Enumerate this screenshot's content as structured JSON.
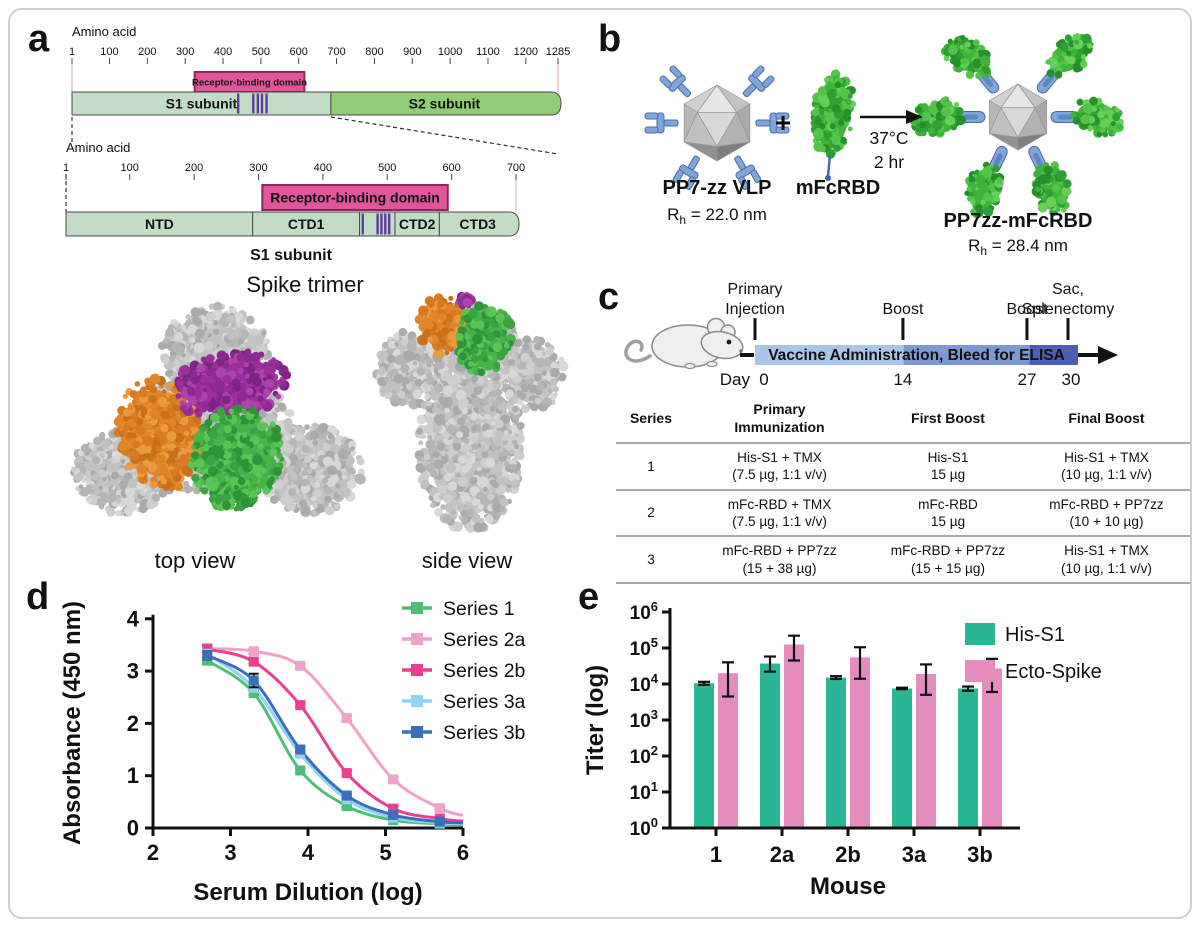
{
  "figure": {
    "panel_labels": {
      "a": "a",
      "b": "b",
      "c": "c",
      "d": "d",
      "e": "e"
    }
  },
  "panel_a": {
    "full_map": {
      "ruler_title": "Amino acid",
      "ticks": [
        1,
        100,
        200,
        300,
        400,
        500,
        600,
        700,
        800,
        900,
        1000,
        1100,
        1200,
        1285
      ],
      "domain_max": 1285,
      "rbd": {
        "label": "Receptor-binding domain",
        "start": 325,
        "end": 615
      },
      "segments": [
        {
          "label": "S1 subunit",
          "start": 1,
          "end": 685,
          "color": "#c3dcc6"
        },
        {
          "label": "S2 subunit",
          "start": 685,
          "end": 1285,
          "color": "#92cc77"
        }
      ],
      "marks": [
        440,
        480,
        492,
        503,
        515
      ]
    },
    "s1_map": {
      "ruler_title": "Amino acid",
      "ticks": [
        1,
        100,
        200,
        300,
        400,
        500,
        600,
        700
      ],
      "domain_max": 700,
      "rbd": {
        "label": "Receptor-binding domain",
        "start": 306,
        "end": 594
      },
      "segments": [
        {
          "label": "NTD",
          "start": 1,
          "end": 291,
          "color": "#c3dcc6"
        },
        {
          "label": "CTD1",
          "start": 291,
          "end": 457,
          "color": "#c3dcc6"
        },
        {
          "label": "",
          "start": 457,
          "end": 512,
          "color": "#c3dcc6"
        },
        {
          "label": "CTD2",
          "start": 512,
          "end": 581,
          "color": "#c3dcc6"
        },
        {
          "label": "CTD3",
          "start": 581,
          "end": 700,
          "color": "#c3dcc6"
        }
      ],
      "marks": [
        462,
        485,
        491,
        497,
        503
      ],
      "caption": "S1 subunit"
    },
    "trimer": {
      "title": "Spike trimer",
      "captions": [
        "top view",
        "side view"
      ]
    }
  },
  "panel_b": {
    "vlp_label": "PP7-zz VLP",
    "vlp_rh": {
      "prefix": "R",
      "sub": "h",
      "value": " = 22.0 nm"
    },
    "plus": "+",
    "ligand_label": "mFcRBD",
    "arrow_temp": "37°C",
    "arrow_time": "2 hr",
    "product_label": "PP7zz-mFcRBD",
    "product_rh": {
      "prefix": "R",
      "sub": "h",
      "value": " = 28.4 nm"
    }
  },
  "panel_c": {
    "timeline": {
      "events": [
        {
          "label": "Primary\nInjection",
          "day": 0
        },
        {
          "label": "Boost",
          "day": 14
        },
        {
          "label": "Boost",
          "day": 27
        },
        {
          "label": "Sac,\nSplenectomy",
          "day": 30
        }
      ],
      "bar_label": "Vaccine Administration, Bleed for ELISA",
      "day_prefix": "Day",
      "day_ticks": [
        "0",
        "14",
        "27",
        "30"
      ]
    },
    "table": {
      "headers": [
        "Series",
        "Primary\nImmunization",
        "First Boost",
        "Final Boost"
      ],
      "rows": [
        [
          "1",
          "His-S1 + TMX\n(7.5 µg, 1:1 v/v)",
          "His-S1\n15 µg",
          "His-S1 + TMX\n(10 µg, 1:1 v/v)"
        ],
        [
          "2",
          "mFc-RBD + TMX\n(7.5 µg, 1:1 v/v)",
          "mFc-RBD\n15 µg",
          "mFc-RBD + PP7zz\n(10 + 10 µg)"
        ],
        [
          "3",
          "mFc-RBD + PP7zz\n(15 + 38 µg)",
          "mFc-RBD + PP7zz\n(15 + 15 µg)",
          "His-S1 + TMX\n(10 µg, 1:1 v/v)"
        ]
      ]
    }
  },
  "chart_data": [
    {
      "panel": "d",
      "type": "line",
      "xlabel": "Serum Dilution (log)",
      "ylabel": "Absorbance (450 nm)",
      "xlim": [
        2,
        6
      ],
      "ylim": [
        0,
        4
      ],
      "xticks": [
        2,
        3,
        4,
        5,
        6
      ],
      "yticks": [
        0,
        1,
        2,
        3,
        4
      ],
      "x": [
        2.7,
        3.3,
        3.9,
        4.5,
        5.1,
        5.7
      ],
      "curve_end_x": 6.0,
      "legend_position": "top-right",
      "series": [
        {
          "name": "Series 1",
          "color": "#4cbf79",
          "values": [
            3.2,
            2.58,
            1.1,
            0.42,
            0.15,
            0.08
          ],
          "end_value": 0.06,
          "err": [
            0.06,
            0.04,
            0.04,
            0.03,
            0.02,
            0.02
          ]
        },
        {
          "name": "Series 2a",
          "color": "#f0a3ca",
          "values": [
            3.43,
            3.38,
            3.1,
            2.1,
            0.93,
            0.38
          ],
          "end_value": 0.24,
          "err": [
            0.08,
            0.05,
            0.04,
            0.05,
            0.04,
            0.03
          ]
        },
        {
          "name": "Series 2b",
          "color": "#e8418f",
          "values": [
            3.42,
            3.18,
            2.35,
            1.05,
            0.37,
            0.18
          ],
          "end_value": 0.13,
          "err": [
            0.07,
            0.04,
            0.05,
            0.04,
            0.03,
            0.02
          ]
        },
        {
          "name": "Series 3a",
          "color": "#8fd4f2",
          "values": [
            3.33,
            2.68,
            1.42,
            0.55,
            0.2,
            0.1
          ],
          "end_value": 0.08,
          "err": [
            0.06,
            0.05,
            0.04,
            0.03,
            0.02,
            0.02
          ]
        },
        {
          "name": "Series 3b",
          "color": "#3a70bb",
          "values": [
            3.3,
            2.82,
            1.5,
            0.62,
            0.25,
            0.12
          ],
          "end_value": 0.1,
          "err": [
            0.08,
            0.13,
            0.05,
            0.04,
            0.03,
            0.02
          ]
        }
      ]
    },
    {
      "panel": "e",
      "type": "bar",
      "xlabel": "Mouse",
      "ylabel": "Titer (log)",
      "yscale": "log",
      "ylim_exp": [
        0,
        6
      ],
      "categories": [
        "1",
        "2a",
        "2b",
        "3a",
        "3b"
      ],
      "legend_position": "top-right",
      "series": [
        {
          "name": "His-S1",
          "color": "#2ab594",
          "values": [
            10500,
            37000,
            15000,
            7500,
            7500
          ],
          "err_lo": [
            9500,
            22000,
            13800,
            7200,
            6500
          ],
          "err_hi": [
            11500,
            58000,
            16500,
            7900,
            8500
          ]
        },
        {
          "name": "Ecto-Spike",
          "color": "#e48cbe",
          "values": [
            20000,
            125000,
            55000,
            19000,
            27000
          ],
          "err_lo": [
            4500,
            45000,
            14000,
            5000,
            6000
          ],
          "err_hi": [
            40000,
            220000,
            105000,
            35000,
            50000
          ]
        }
      ]
    }
  ],
  "colors": {
    "rbd_pink": "#e0559c",
    "rbd_border": "#8f2560",
    "mark_purple": "#5c3d9e",
    "bar_border": "#4a4a4a",
    "timeline_segments": [
      "#a9c6ea",
      "#7e99d2",
      "#4a5fb4"
    ],
    "vlp_blue": "#7ea6db",
    "vlp_blue_dark": "#4a6aa5",
    "axis_black": "#111111"
  }
}
